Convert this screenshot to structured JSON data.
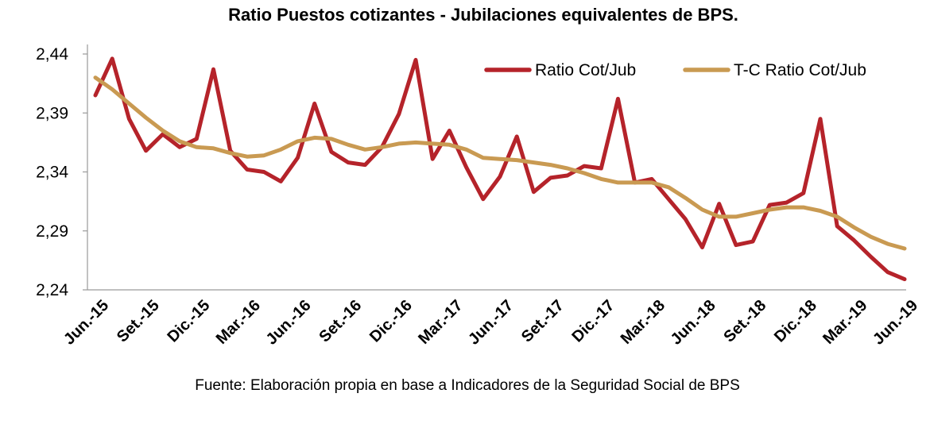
{
  "chart_data": {
    "type": "line",
    "title": "Ratio Puestos cotizantes - Jubilaciones  equivalentes de BPS.",
    "source": "Fuente: Elaboración propia en base a Indicadores de la Seguridad Social de BPS",
    "xlabel": "",
    "ylabel": "",
    "ylim": [
      2.24,
      2.44
    ],
    "yticks": [
      "2,44",
      "2,39",
      "2,34",
      "2,29",
      "2,24"
    ],
    "ytick_values": [
      2.44,
      2.39,
      2.34,
      2.29,
      2.24
    ],
    "x_tick_labels": [
      "Jun.-15",
      "Set.-15",
      "Dic.-15",
      "Mar.-16",
      "Jun.-16",
      "Set.-16",
      "Dic.-16",
      "Mar.-17",
      "Jun.-17",
      "Set.-17",
      "Dic.-17",
      "Mar.-18",
      "Jun.-18",
      "Set.-18",
      "Dic.-18",
      "Mar.-19",
      "Jun.-19"
    ],
    "x_tick_indices": [
      0,
      3,
      6,
      9,
      12,
      15,
      18,
      21,
      24,
      27,
      30,
      33,
      36,
      39,
      42,
      45,
      48
    ],
    "legend_position": "top-right",
    "grid": false,
    "series": [
      {
        "name": "Ratio Cot/Jub",
        "color": "#b5232a",
        "values": [
          2.405,
          2.436,
          2.385,
          2.358,
          2.372,
          2.361,
          2.368,
          2.427,
          2.358,
          2.342,
          2.34,
          2.332,
          2.352,
          2.398,
          2.357,
          2.348,
          2.346,
          2.361,
          2.389,
          2.435,
          2.351,
          2.375,
          2.344,
          2.317,
          2.336,
          2.37,
          2.323,
          2.335,
          2.337,
          2.345,
          2.343,
          2.402,
          2.331,
          2.334,
          2.317,
          2.3,
          2.276,
          2.313,
          2.278,
          2.281,
          2.312,
          2.314,
          2.322,
          2.385,
          2.294,
          2.282,
          2.268,
          2.255,
          2.249
        ]
      },
      {
        "name": "T-C Ratio Cot/Jub",
        "color": "#c99a52",
        "values": [
          2.42,
          2.41,
          2.398,
          2.386,
          2.375,
          2.366,
          2.361,
          2.36,
          2.356,
          2.353,
          2.354,
          2.359,
          2.366,
          2.369,
          2.368,
          2.363,
          2.359,
          2.361,
          2.364,
          2.365,
          2.364,
          2.363,
          2.359,
          2.352,
          2.351,
          2.35,
          2.348,
          2.346,
          2.343,
          2.339,
          2.334,
          2.331,
          2.331,
          2.331,
          2.327,
          2.318,
          2.308,
          2.302,
          2.302,
          2.305,
          2.308,
          2.31,
          2.31,
          2.307,
          2.302,
          2.293,
          2.285,
          2.279,
          2.275
        ]
      }
    ]
  }
}
